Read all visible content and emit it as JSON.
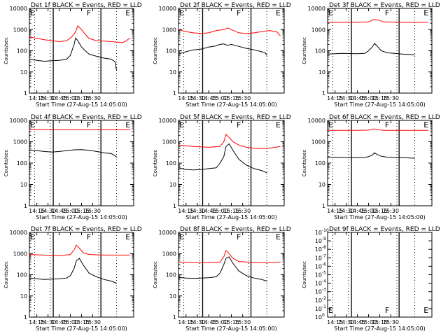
{
  "chart_data": [
    {
      "type": "line",
      "title": "Det 1f BLACK = Events, RED = LLD",
      "xlabel": "Start Time (27-Aug-15 14:05:00)",
      "ylabel": "Counts/sec",
      "y_log": true,
      "ylim": [
        1,
        10000
      ],
      "xticks": [
        "14:15",
        "14:30",
        "14:45",
        "15:00",
        "15:15",
        "15:30"
      ],
      "yticks": [
        "1",
        "10",
        "100",
        "1000",
        "10000"
      ],
      "markers": [
        "E",
        "F",
        "E"
      ],
      "series": [
        {
          "color": "#ff0000",
          "x_min": [
            0,
            20,
            40,
            50,
            57,
            62,
            65,
            70,
            75,
            80,
            90,
            105,
            115,
            125,
            130,
            135
          ],
          "y": [
            450,
            330,
            270,
            300,
            450,
            800,
            1500,
            1000,
            600,
            380,
            300,
            280,
            260,
            240,
            300,
            400
          ]
        },
        {
          "color": "#000000",
          "x_min": [
            0,
            10,
            20,
            30,
            40,
            50,
            55,
            60,
            62,
            65,
            70,
            75,
            80,
            90,
            100,
            110,
            115,
            117
          ],
          "y": [
            40,
            35,
            32,
            34,
            35,
            40,
            60,
            200,
            400,
            300,
            150,
            100,
            70,
            55,
            45,
            40,
            30,
            12
          ]
        }
      ]
    },
    {
      "type": "line",
      "title": "Det 2f BLACK = Events, RED = LLD",
      "xlabel": "Start Time (27-Aug-15 14:05:00)",
      "ylabel": "Counts/sec",
      "y_log": true,
      "ylim": [
        1,
        10000
      ],
      "xticks": [
        "14:15",
        "14:30",
        "14:45",
        "15:00",
        "15:15",
        "15:30"
      ],
      "yticks": [
        "1",
        "10",
        "100",
        "1000",
        "10000"
      ],
      "markers": [
        "E",
        "F",
        "E"
      ],
      "series": [
        {
          "color": "#ff0000",
          "x_min": [
            0,
            10,
            20,
            30,
            40,
            50,
            60,
            65,
            70,
            80,
            90,
            100,
            110,
            120,
            130,
            135
          ],
          "y": [
            1000,
            800,
            700,
            650,
            700,
            900,
            1000,
            1200,
            1000,
            700,
            650,
            700,
            800,
            900,
            800,
            500
          ]
        },
        {
          "color": "#000000",
          "x_min": [
            0,
            10,
            20,
            30,
            40,
            50,
            55,
            60,
            65,
            70,
            80,
            90,
            100,
            110,
            115,
            117
          ],
          "y": [
            70,
            90,
            110,
            120,
            150,
            170,
            200,
            210,
            180,
            200,
            160,
            130,
            110,
            90,
            80,
            60
          ]
        }
      ]
    },
    {
      "type": "line",
      "title": "Det 3f BLACK = Events, RED = LLD",
      "xlabel": "Start Time (27-Aug-15 14:05:00)",
      "ylabel": "Counts/sec",
      "y_log": true,
      "ylim": [
        1,
        10000
      ],
      "xticks": [
        "14:15",
        "14:30",
        "14:45",
        "15:00",
        "15:15",
        "15:30"
      ],
      "yticks": [
        "1",
        "10",
        "100",
        "1000",
        "10000"
      ],
      "markers": [
        "E",
        "F",
        "E"
      ],
      "series": [
        {
          "color": "#ff0000",
          "x_min": [
            0,
            40,
            55,
            62,
            68,
            75,
            100,
            135
          ],
          "y": [
            2200,
            2200,
            2300,
            3000,
            2800,
            2300,
            2200,
            2200
          ]
        },
        {
          "color": "#000000",
          "x_min": [
            0,
            20,
            40,
            50,
            55,
            60,
            63,
            67,
            72,
            80,
            100,
            117
          ],
          "y": [
            70,
            75,
            72,
            75,
            100,
            150,
            220,
            160,
            100,
            80,
            70,
            65
          ]
        }
      ]
    },
    {
      "type": "line",
      "title": "Det 4f BLACK = Events, RED = LLD",
      "xlabel": "Start Time (27-Aug-15 14:05:00)",
      "ylabel": "Counts/sec",
      "y_log": true,
      "ylim": [
        1,
        10000
      ],
      "xticks": [
        "14:15",
        "14:30",
        "14:45",
        "15:00",
        "15:15",
        "15:30"
      ],
      "yticks": [
        "1",
        "10",
        "100",
        "1000",
        "10000"
      ],
      "markers": [
        "E",
        "F",
        "E"
      ],
      "series": [
        {
          "color": "#ff0000",
          "x_min": [
            0,
            30,
            60,
            100,
            135
          ],
          "y": [
            3800,
            3600,
            3600,
            3600,
            3600
          ]
        },
        {
          "color": "#000000",
          "x_min": [
            0,
            10,
            20,
            30,
            40,
            50,
            60,
            70,
            80,
            90,
            100,
            110,
            117
          ],
          "y": [
            420,
            380,
            350,
            330,
            350,
            380,
            420,
            430,
            400,
            350,
            300,
            280,
            200
          ]
        }
      ]
    },
    {
      "type": "line",
      "title": "Det 5f BLACK = Events, RED = LLD",
      "xlabel": "Start Time (27-Aug-15 14:05:00)",
      "ylabel": "Counts/sec",
      "y_log": true,
      "ylim": [
        1,
        10000
      ],
      "xticks": [
        "14:15",
        "14:30",
        "14:45",
        "15:00",
        "15:15",
        "15:30"
      ],
      "yticks": [
        "1",
        "10",
        "100",
        "1000",
        "10000"
      ],
      "markers": [
        "E",
        "F",
        "E"
      ],
      "series": [
        {
          "color": "#ff0000",
          "x_min": [
            0,
            20,
            40,
            55,
            60,
            63,
            67,
            72,
            80,
            90,
            100,
            110,
            120,
            135
          ],
          "y": [
            700,
            600,
            550,
            600,
            1000,
            2200,
            1600,
            1000,
            700,
            550,
            500,
            480,
            500,
            600
          ]
        },
        {
          "color": "#000000",
          "x_min": [
            0,
            10,
            20,
            30,
            40,
            50,
            55,
            60,
            63,
            67,
            72,
            80,
            90,
            100,
            110,
            117
          ],
          "y": [
            60,
            50,
            48,
            50,
            55,
            60,
            100,
            200,
            600,
            800,
            400,
            150,
            80,
            55,
            45,
            35
          ]
        }
      ]
    },
    {
      "type": "line",
      "title": "Det 6f BLACK = Events, RED = LLD",
      "xlabel": "Start Time (27-Aug-15 14:05:00)",
      "ylabel": "Counts/sec",
      "y_log": true,
      "ylim": [
        1,
        10000
      ],
      "xticks": [
        "14:15",
        "14:30",
        "14:45",
        "15:00",
        "15:15",
        "15:30"
      ],
      "yticks": [
        "1",
        "10",
        "100",
        "1000",
        "10000"
      ],
      "markers": [
        "E",
        "F",
        "E"
      ],
      "series": [
        {
          "color": "#ff0000",
          "x_min": [
            0,
            40,
            55,
            62,
            68,
            75,
            100,
            135
          ],
          "y": [
            3400,
            3400,
            3500,
            4000,
            3700,
            3400,
            3400,
            3400
          ]
        },
        {
          "color": "#000000",
          "x_min": [
            0,
            20,
            40,
            50,
            55,
            60,
            63,
            67,
            72,
            80,
            100,
            117
          ],
          "y": [
            190,
            185,
            180,
            185,
            200,
            240,
            300,
            250,
            210,
            190,
            180,
            170
          ]
        }
      ]
    },
    {
      "type": "line",
      "title": "Det 7f BLACK = Events, RED = LLD",
      "xlabel": "Start Time (27-Aug-15 14:05:00)",
      "ylabel": "Counts/sec",
      "y_log": true,
      "ylim": [
        1,
        10000
      ],
      "xticks": [
        "14:15",
        "14:30",
        "14:45",
        "15:00",
        "15:15",
        "15:30"
      ],
      "yticks": [
        "1",
        "10",
        "100",
        "1000",
        "10000"
      ],
      "markers": [
        "E",
        "F",
        "E"
      ],
      "series": [
        {
          "color": "#ff0000",
          "x_min": [
            0,
            20,
            40,
            55,
            60,
            63,
            67,
            72,
            80,
            100,
            120,
            135
          ],
          "y": [
            900,
            850,
            800,
            900,
            1500,
            2500,
            1800,
            1100,
            900,
            850,
            850,
            850
          ]
        },
        {
          "color": "#000000",
          "x_min": [
            0,
            10,
            20,
            30,
            40,
            50,
            55,
            60,
            63,
            67,
            72,
            80,
            90,
            100,
            110,
            117
          ],
          "y": [
            70,
            65,
            60,
            62,
            65,
            70,
            90,
            200,
            450,
            600,
            300,
            120,
            80,
            60,
            50,
            40
          ]
        }
      ]
    },
    {
      "type": "line",
      "title": "Det 8f BLACK = Events, RED = LLD",
      "xlabel": "Start Time (27-Aug-15 14:05:00)",
      "ylabel": "Counts/sec",
      "y_log": true,
      "ylim": [
        1,
        10000
      ],
      "xticks": [
        "14:15",
        "14:30",
        "14:45",
        "15:00",
        "15:15",
        "15:30"
      ],
      "yticks": [
        "1",
        "10",
        "100",
        "1000",
        "10000"
      ],
      "markers": [
        "E",
        "F",
        "E"
      ],
      "series": [
        {
          "color": "#ff0000",
          "x_min": [
            0,
            20,
            40,
            55,
            60,
            63,
            67,
            72,
            80,
            100,
            120,
            135
          ],
          "y": [
            400,
            380,
            370,
            400,
            700,
            1400,
            1000,
            600,
            420,
            380,
            380,
            400
          ]
        },
        {
          "color": "#000000",
          "x_min": [
            0,
            10,
            20,
            30,
            40,
            50,
            55,
            60,
            63,
            67,
            72,
            80,
            90,
            100,
            110,
            117
          ],
          "y": [
            75,
            70,
            68,
            70,
            72,
            80,
            120,
            300,
            600,
            700,
            350,
            150,
            90,
            70,
            60,
            50
          ]
        }
      ]
    },
    {
      "type": "line",
      "title": "Det 9f BLACK = Events, RED = LLD",
      "xlabel": "Start Time (27-Aug-15 14:05:00)",
      "ylabel": "Counts/sec",
      "y_log": true,
      "ylim": [
        1,
        1e-10
      ],
      "xticks": [
        "14:15",
        "14:30",
        "14:45",
        "15:00",
        "15:15",
        "15:30"
      ],
      "yticks_base": "10",
      "yticks_exp": [
        "0",
        "-1",
        "-2",
        "-3",
        "-4",
        "-5",
        "-6",
        "-7",
        "-8",
        "-9",
        "-10"
      ],
      "markers": [
        "E",
        "F",
        "E"
      ],
      "series": []
    }
  ]
}
